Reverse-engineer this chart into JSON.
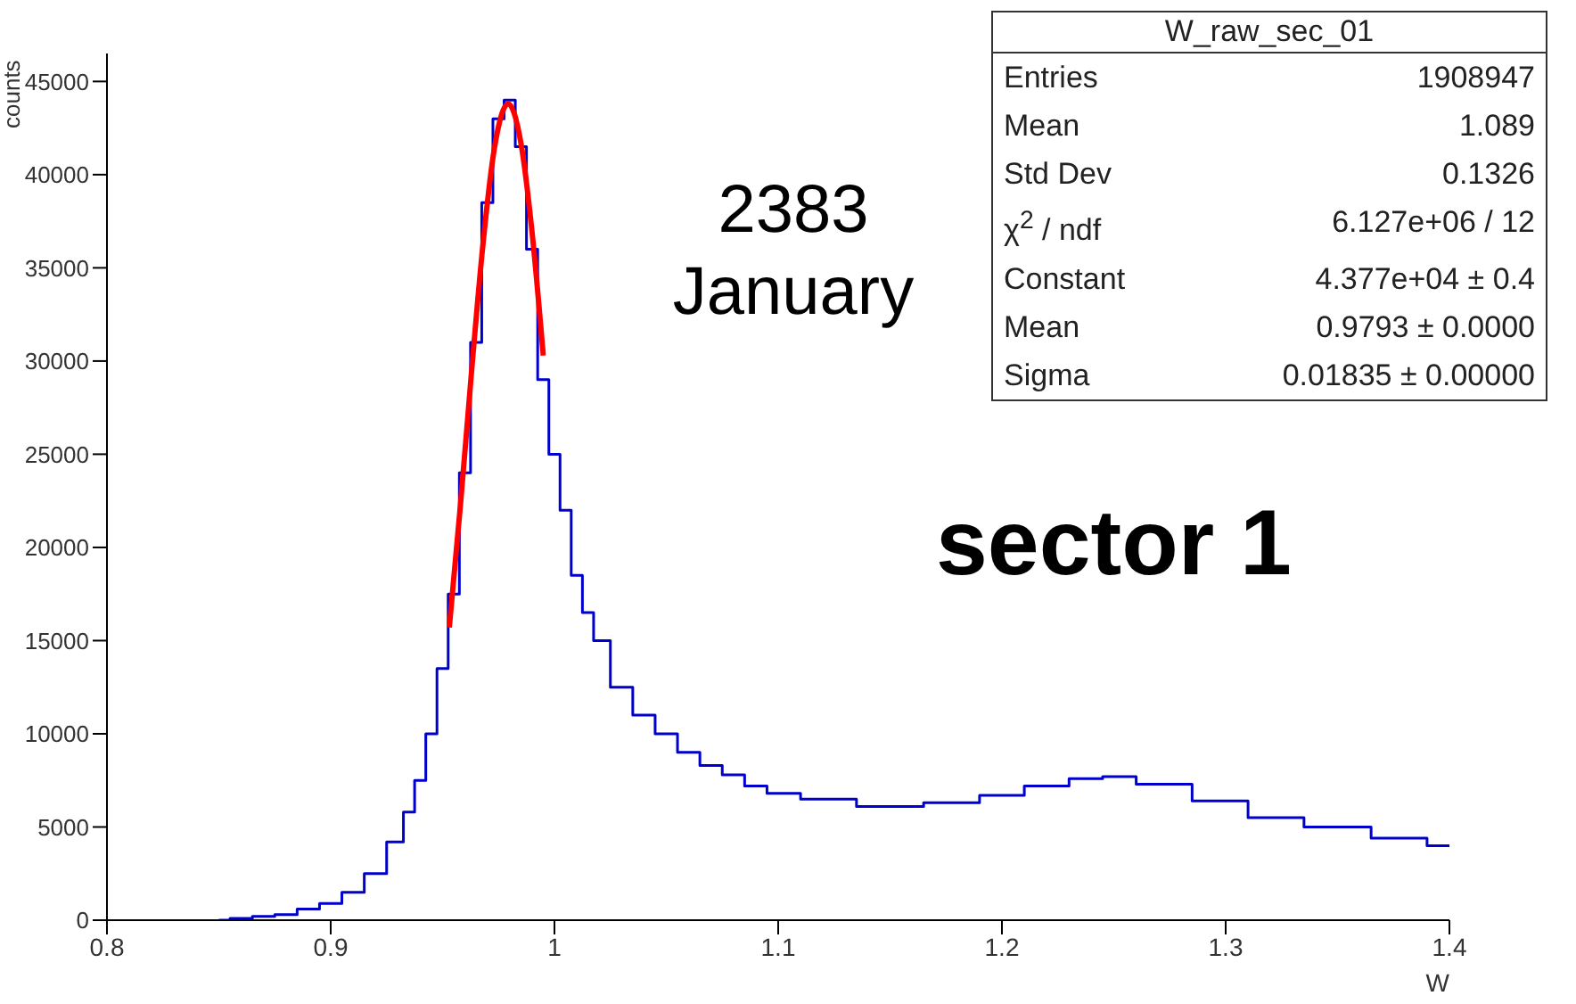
{
  "chart_data": {
    "type": "step",
    "xlabel": "W",
    "ylabel": "counts",
    "series": [
      {
        "type": "step",
        "color": "#0000cc",
        "x": [
          0.85,
          0.86,
          0.87,
          0.88,
          0.89,
          0.9,
          0.91,
          0.92,
          0.93,
          0.935,
          0.94,
          0.945,
          0.95,
          0.955,
          0.96,
          0.965,
          0.97,
          0.975,
          0.98,
          0.985,
          0.99,
          0.995,
          1.0,
          1.005,
          1.01,
          1.015,
          1.02,
          1.03,
          1.04,
          1.05,
          1.06,
          1.07,
          1.08,
          1.09,
          1.1,
          1.12,
          1.15,
          1.18,
          1.2,
          1.22,
          1.24,
          1.25,
          1.27,
          1.3,
          1.32,
          1.35,
          1.38,
          1.4
        ],
        "values": [
          0,
          100,
          200,
          300,
          600,
          900,
          1500,
          2500,
          4200,
          5800,
          7500,
          10000,
          13500,
          17500,
          24000,
          31000,
          38500,
          43000,
          44000,
          41500,
          36000,
          29000,
          25000,
          22000,
          18500,
          16500,
          15000,
          12500,
          11000,
          10000,
          9000,
          8300,
          7800,
          7200,
          6800,
          6500,
          6100,
          6300,
          6700,
          7200,
          7600,
          7700,
          7300,
          6400,
          5500,
          5000,
          4400,
          4000
        ]
      },
      {
        "type": "line",
        "color": "#ff0000",
        "x": [
          0.953,
          0.958,
          0.963,
          0.968,
          0.973,
          0.9793,
          0.985,
          0.99,
          0.995
        ],
        "values": [
          15700,
          22300,
          29500,
          36200,
          41300,
          43800,
          41700,
          36900,
          30300
        ]
      }
    ],
    "xlim": [
      0.8,
      1.4
    ],
    "xticks": [
      0.8,
      0.9,
      1,
      1.1,
      1.2,
      1.3,
      1.4
    ],
    "ylim": [
      0,
      46500
    ],
    "yticks": [
      0,
      5000,
      10000,
      15000,
      20000,
      25000,
      30000,
      35000,
      40000,
      45000
    ],
    "grid": false,
    "legend": false,
    "annotations": [
      "W_raw_sec_01",
      "Entries",
      "1908947",
      "Mean",
      "1.089",
      "Std Dev",
      "0.1326",
      "χ$^{2}$ / ndf",
      "6.127e+06 / 12",
      "Constant",
      "4.377e+04 ± 0.4",
      "Mean",
      "0.9793 ± 0.0000",
      "Sigma",
      "0.01835 ± 0.00000",
      "2383",
      "January",
      "sector 1"
    ]
  }
}
